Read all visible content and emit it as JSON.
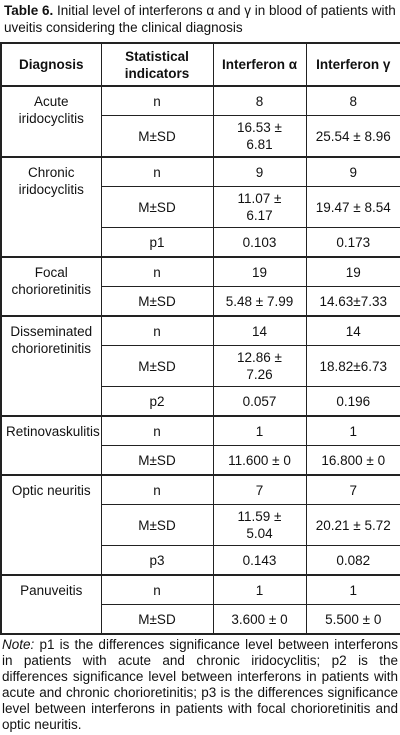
{
  "caption": {
    "label": "Table 6.",
    "text": "Initial level of interferons α and γ in blood of patients with uveitis considering the clinical diagnosis"
  },
  "table": {
    "header": [
      "Diagnosis",
      "Statistical indicators",
      "Interferon α",
      "Interferon γ"
    ],
    "groups": [
      {
        "diagnosis": "Acute iridocyclitis",
        "rows": [
          [
            "n",
            "8",
            "8"
          ],
          [
            "M±SD",
            "16.53 ± 6.81",
            "25.54 ± 8.96"
          ]
        ]
      },
      {
        "diagnosis": "Chronic iridocyclitis",
        "rows": [
          [
            "n",
            "9",
            "9"
          ],
          [
            "M±SD",
            "11.07 ± 6.17",
            "19.47 ± 8.54"
          ],
          [
            "p1",
            "0.103",
            "0.173"
          ]
        ]
      },
      {
        "diagnosis": "Focal chorioretinitis",
        "rows": [
          [
            "n",
            "19",
            "19"
          ],
          [
            "M±SD",
            "5.48 ± 7.99",
            "14.63±7.33"
          ]
        ]
      },
      {
        "diagnosis": "Disseminated chorioretinitis",
        "rows": [
          [
            "n",
            "14",
            "14"
          ],
          [
            "M±SD",
            "12.86 ± 7.26",
            "18.82±6.73"
          ],
          [
            "p2",
            "0.057",
            "0.196"
          ]
        ]
      },
      {
        "diagnosis": "Retinovaskulitis",
        "rows": [
          [
            "n",
            "1",
            "1"
          ],
          [
            "M±SD",
            "11.600 ± 0",
            "16.800 ± 0"
          ]
        ]
      },
      {
        "diagnosis": "Optic neuritis",
        "rows": [
          [
            "n",
            "7",
            "7"
          ],
          [
            "M±SD",
            "11.59 ± 5.04",
            "20.21 ± 5.72"
          ],
          [
            "p3",
            "0.143",
            "0.082"
          ]
        ]
      },
      {
        "diagnosis": "Panuveitis",
        "rows": [
          [
            "n",
            "1",
            "1"
          ],
          [
            "M±SD",
            "3.600 ± 0",
            "5.500 ± 0"
          ]
        ]
      }
    ]
  },
  "note": {
    "label": "Note:",
    "text": "p1 is the differences significance level between interferons in patients with acute and chronic iridocyclitis; p2 is the differences significance level between interferons in patients with acute and chronic chorioretinitis; p3 is the differences significance level between interferons in patients with focal chorioretinitis and optic neuritis."
  }
}
